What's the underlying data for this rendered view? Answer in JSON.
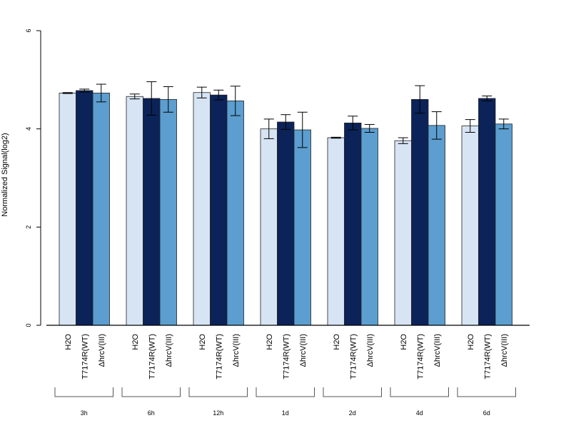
{
  "chart_data": {
    "type": "bar",
    "title": "",
    "xlabel": "",
    "ylabel": "Normalized Signal(log2)",
    "ylim": [
      0,
      6
    ],
    "yticks": [
      0,
      2,
      4,
      6
    ],
    "grid": false,
    "legend": "none",
    "categories": [
      "3h",
      "6h",
      "12h",
      "1d",
      "2d",
      "4d",
      "6d"
    ],
    "series": [
      {
        "name": "H2O",
        "color": "#d6e4f3",
        "values": [
          4.73,
          4.66,
          4.74,
          4.0,
          3.82,
          3.76,
          4.06
        ],
        "errors": [
          0.01,
          0.05,
          0.11,
          0.2,
          0.01,
          0.06,
          0.13
        ]
      },
      {
        "name": "T7174R(WT)",
        "color": "#0b2358",
        "values": [
          4.78,
          4.62,
          4.69,
          4.14,
          4.12,
          4.6,
          4.62
        ],
        "errors": [
          0.03,
          0.34,
          0.1,
          0.15,
          0.14,
          0.28,
          0.05
        ]
      },
      {
        "name": "ΔhrcV(III)",
        "color": "#5b9ecf",
        "values": [
          4.73,
          4.6,
          4.57,
          3.98,
          4.01,
          4.07,
          4.1
        ],
        "errors": [
          0.18,
          0.26,
          0.3,
          0.36,
          0.08,
          0.28,
          0.1
        ]
      }
    ]
  }
}
